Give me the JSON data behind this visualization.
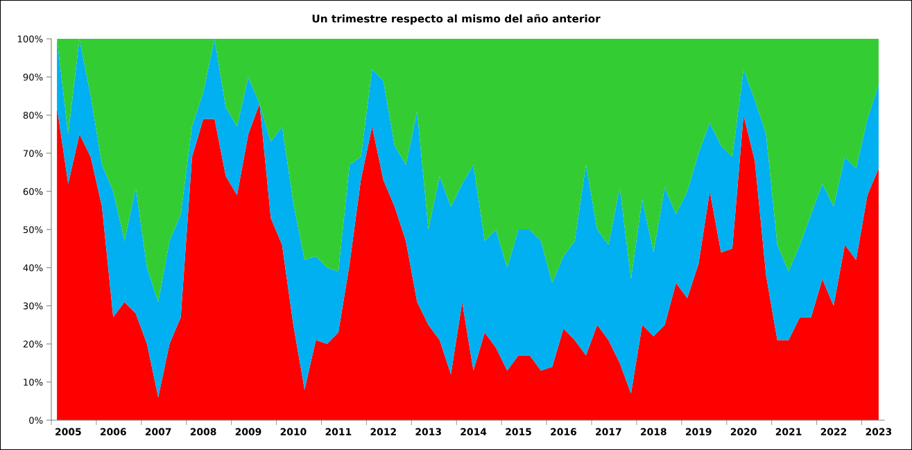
{
  "chart_data": {
    "type": "area",
    "stacked": true,
    "title": "Un trimestre respecto al mismo del año anterior",
    "categories": [
      null,
      "2005",
      null,
      null,
      null,
      "2006",
      null,
      null,
      null,
      "2007",
      null,
      null,
      null,
      "2008",
      null,
      null,
      null,
      "2009",
      null,
      null,
      null,
      "2010",
      null,
      null,
      null,
      "2011",
      null,
      null,
      null,
      "2012",
      null,
      null,
      null,
      "2013",
      null,
      null,
      null,
      "2014",
      null,
      null,
      null,
      "2015",
      null,
      null,
      null,
      "2016",
      null,
      null,
      null,
      "2017",
      null,
      null,
      null,
      "2018",
      null,
      null,
      null,
      "2019",
      null,
      null,
      null,
      "2020",
      null,
      null,
      null,
      "2021",
      null,
      null,
      null,
      "2022",
      null,
      null,
      null,
      "2023"
    ],
    "series": [
      {
        "color": "#ff0000",
        "values": [
          82,
          62,
          75,
          69,
          56,
          27,
          31,
          28,
          20,
          6,
          20,
          27,
          69,
          79,
          79,
          64,
          59,
          75,
          83,
          53,
          46,
          25,
          8,
          21,
          20,
          23,
          41,
          63,
          77,
          63,
          56,
          47,
          31,
          25,
          21,
          12,
          31,
          13,
          23,
          19,
          13,
          17,
          17,
          13,
          14,
          24,
          21,
          17,
          25,
          21,
          15,
          7,
          25,
          22,
          25,
          36,
          32,
          41,
          60,
          44,
          45,
          80,
          68,
          38,
          21,
          21,
          27,
          27,
          37,
          30,
          46,
          42,
          59,
          66
        ]
      },
      {
        "color": "#00b0f0",
        "values": [
          18,
          13,
          25,
          16,
          11,
          33,
          16,
          33,
          20,
          25,
          27,
          27,
          8,
          7,
          21,
          18,
          18,
          15,
          0,
          20,
          31,
          32,
          34,
          22,
          20,
          16,
          26,
          6,
          15,
          26,
          16,
          20,
          50,
          25,
          43,
          44,
          31,
          54,
          24,
          31,
          27,
          33,
          33,
          34,
          22,
          19,
          26,
          50,
          25,
          25,
          46,
          30,
          33,
          22,
          36,
          18,
          28,
          29,
          18,
          28,
          24,
          12,
          16,
          37,
          25,
          18,
          19,
          27,
          25,
          26,
          23,
          24,
          20,
          22
        ]
      },
      {
        "color": "#33cc33",
        "values": [
          0,
          25,
          0,
          15,
          33,
          40,
          53,
          39,
          60,
          69,
          53,
          46,
          23,
          14,
          0,
          18,
          23,
          10,
          17,
          27,
          23,
          43,
          58,
          57,
          60,
          61,
          33,
          31,
          8,
          11,
          28,
          33,
          19,
          50,
          36,
          44,
          38,
          33,
          53,
          50,
          60,
          50,
          50,
          53,
          64,
          57,
          53,
          33,
          50,
          54,
          39,
          63,
          42,
          56,
          39,
          46,
          40,
          30,
          22,
          28,
          31,
          8,
          16,
          25,
          54,
          61,
          54,
          46,
          38,
          44,
          31,
          34,
          21,
          12
        ]
      }
    ],
    "ylim": [
      0,
      100
    ],
    "yticks": [
      {
        "value": 0,
        "label": "0%"
      },
      {
        "value": 10,
        "label": "10%"
      },
      {
        "value": 20,
        "label": "20%"
      },
      {
        "value": 30,
        "label": "30%"
      },
      {
        "value": 40,
        "label": "40%"
      },
      {
        "value": 50,
        "label": "50%"
      },
      {
        "value": 60,
        "label": "60%"
      },
      {
        "value": 70,
        "label": "70%"
      },
      {
        "value": 80,
        "label": "80%"
      },
      {
        "value": 90,
        "label": "90%"
      },
      {
        "value": 100,
        "label": "100%"
      }
    ],
    "grid": false,
    "legend": false
  }
}
